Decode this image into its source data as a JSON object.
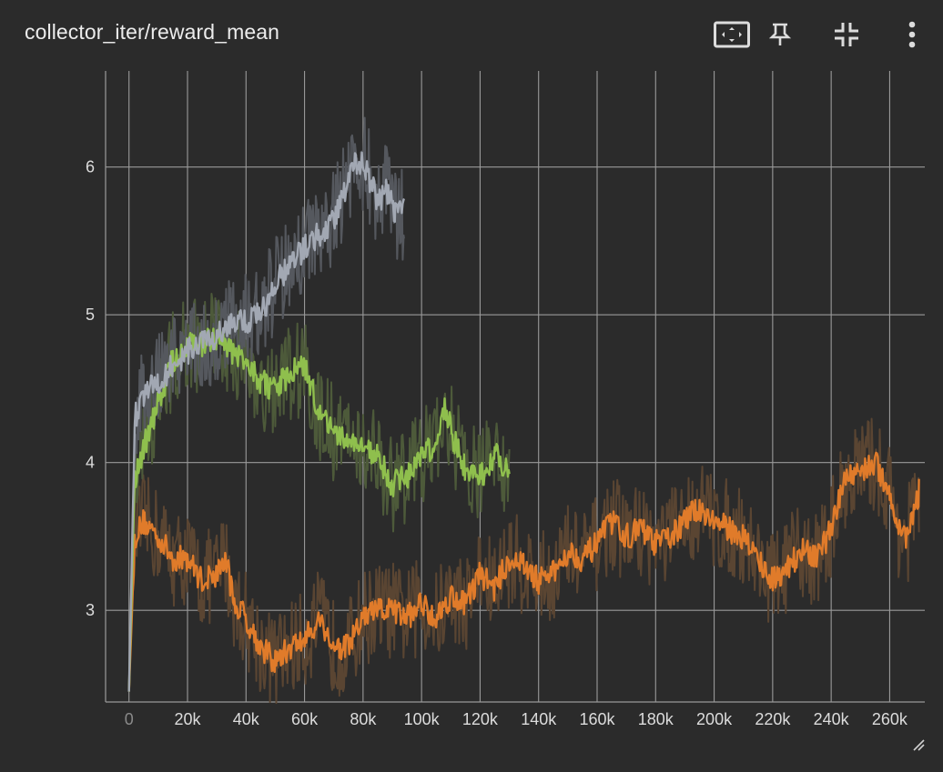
{
  "card": {
    "title": "collector_iter/reward_mean",
    "toolbar": {
      "fit_icon": "fit-to-domain-icon",
      "pin_icon": "pin-icon",
      "collapse_icon": "collapse-icon",
      "more_icon": "more-vert-icon"
    }
  },
  "colors": {
    "background": "#2b2b2b",
    "grid": "#9a9a9a",
    "tick_text": "#dcdcdc"
  },
  "chart_data": {
    "type": "line",
    "title": "collector_iter/reward_mean",
    "xlim": [
      -8000,
      272000
    ],
    "ylim": [
      2.38,
      6.65
    ],
    "x_ticks": [
      0,
      20000,
      40000,
      60000,
      80000,
      100000,
      120000,
      140000,
      160000,
      180000,
      200000,
      220000,
      240000,
      260000
    ],
    "x_tick_labels": [
      "0",
      "20k",
      "40k",
      "60k",
      "80k",
      "100k",
      "120k",
      "140k",
      "160k",
      "180k",
      "200k",
      "220k",
      "240k",
      "260k"
    ],
    "y_ticks": [
      3,
      4,
      5,
      6
    ],
    "y_tick_labels": [
      "3",
      "4",
      "5",
      "6"
    ],
    "grid": true,
    "series": [
      {
        "color": "#e07b2a",
        "raw_color": "#5a4532",
        "x": [
          0,
          2000,
          5000,
          10000,
          15000,
          20000,
          25000,
          30000,
          33000,
          36000,
          40000,
          45000,
          50000,
          55000,
          60000,
          65000,
          70000,
          75000,
          80000,
          85000,
          90000,
          95000,
          100000,
          105000,
          110000,
          115000,
          120000,
          125000,
          130000,
          135000,
          140000,
          145000,
          150000,
          155000,
          160000,
          165000,
          170000,
          175000,
          180000,
          185000,
          190000,
          195000,
          200000,
          205000,
          210000,
          215000,
          220000,
          225000,
          230000,
          235000,
          240000,
          245000,
          250000,
          255000,
          260000,
          263000,
          266000,
          270000
        ],
        "y": [
          2.45,
          3.5,
          3.6,
          3.5,
          3.35,
          3.35,
          3.2,
          3.25,
          3.35,
          3.05,
          2.95,
          2.75,
          2.65,
          2.75,
          2.8,
          2.95,
          2.75,
          2.75,
          2.95,
          3.0,
          3.0,
          2.95,
          3.05,
          2.95,
          3.1,
          3.05,
          3.25,
          3.15,
          3.35,
          3.3,
          3.2,
          3.25,
          3.4,
          3.35,
          3.45,
          3.6,
          3.5,
          3.55,
          3.45,
          3.5,
          3.6,
          3.7,
          3.6,
          3.55,
          3.5,
          3.35,
          3.2,
          3.3,
          3.4,
          3.35,
          3.55,
          3.9,
          3.95,
          4.0,
          3.8,
          3.55,
          3.5,
          3.8
        ]
      },
      {
        "color": "#8fbf4d",
        "raw_color": "#4d5a3a",
        "x": [
          0,
          2000,
          5000,
          10000,
          15000,
          20000,
          25000,
          30000,
          35000,
          40000,
          45000,
          50000,
          55000,
          60000,
          65000,
          70000,
          75000,
          80000,
          85000,
          90000,
          95000,
          100000,
          105000,
          108000,
          111000,
          115000,
          120000,
          125000,
          130000
        ],
        "y": [
          2.45,
          3.9,
          4.1,
          4.4,
          4.7,
          4.8,
          4.8,
          4.85,
          4.75,
          4.7,
          4.55,
          4.5,
          4.6,
          4.65,
          4.35,
          4.2,
          4.15,
          4.1,
          4.05,
          3.85,
          3.9,
          4.05,
          4.1,
          4.4,
          4.15,
          3.95,
          3.9,
          4.05,
          3.95
        ]
      },
      {
        "color": "#a2a8b3",
        "raw_color": "#55585e",
        "x": [
          0,
          2000,
          5000,
          10000,
          15000,
          20000,
          25000,
          30000,
          35000,
          40000,
          45000,
          50000,
          55000,
          60000,
          65000,
          70000,
          75000,
          78000,
          81000,
          85000,
          88000,
          91000,
          94000
        ],
        "y": [
          2.45,
          4.3,
          4.45,
          4.55,
          4.65,
          4.75,
          4.8,
          4.85,
          4.95,
          4.95,
          5.0,
          5.2,
          5.35,
          5.45,
          5.55,
          5.65,
          5.9,
          6.05,
          6.0,
          5.75,
          5.85,
          5.7,
          5.7
        ]
      }
    ]
  }
}
